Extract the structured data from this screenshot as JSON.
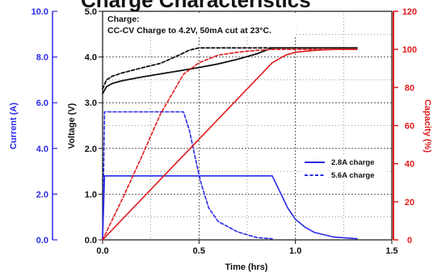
{
  "header": {
    "title": "Charge Characteristics"
  },
  "chart_data": {
    "type": "line",
    "annotation": {
      "line1": "Charge:",
      "line2": "CC-CV Charge to 4.2V, 50mA cut at 23°C."
    },
    "xlabel": "Time (hrs)",
    "x_ticks": [
      "0.0",
      "0.5",
      "1.0",
      "1.5"
    ],
    "xlim": [
      0,
      1.5
    ],
    "axes": {
      "current": {
        "label": "Current (A)",
        "ticks": [
          "0.0",
          "2.0",
          "4.0",
          "6.0",
          "8.0",
          "10.0"
        ],
        "range": [
          0,
          10
        ],
        "color": "#2a2ae6"
      },
      "voltage": {
        "label": "Voltage (V)",
        "ticks": [
          "0.0",
          "1.0",
          "2.0",
          "3.0",
          "4.0",
          "5.0"
        ],
        "range": [
          0,
          5
        ],
        "color": "#111111"
      },
      "capacity": {
        "label": "Capacity (%)",
        "ticks": [
          "0",
          "20",
          "40",
          "60",
          "80",
          "100",
          "120"
        ],
        "range": [
          0,
          120
        ],
        "color": "#e11b1b"
      }
    },
    "grid": true,
    "legend": {
      "placement": "right",
      "entries": [
        "2.8A charge",
        "5.6A charge"
      ]
    },
    "series": [
      {
        "name": "2.8A charge",
        "quantity": "current",
        "style": "solid",
        "color": "#2a2ae6",
        "x": [
          0,
          0.01,
          0.88,
          0.92,
          0.96,
          1.0,
          1.05,
          1.1,
          1.2,
          1.32
        ],
        "y": [
          0,
          2.8,
          2.8,
          2.1,
          1.4,
          0.9,
          0.55,
          0.32,
          0.12,
          0.05
        ]
      },
      {
        "name": "5.6A charge",
        "quantity": "current",
        "style": "dashed",
        "color": "#2a2ae6",
        "x": [
          0,
          0.01,
          0.42,
          0.45,
          0.48,
          0.51,
          0.55,
          0.6,
          0.7,
          0.8,
          0.88
        ],
        "y": [
          0,
          5.6,
          5.6,
          4.8,
          3.6,
          2.5,
          1.4,
          0.8,
          0.35,
          0.1,
          0.05
        ]
      },
      {
        "name": "2.8A charge",
        "quantity": "voltage",
        "style": "solid",
        "color": "#111111",
        "x": [
          0,
          0.02,
          0.05,
          0.1,
          0.2,
          0.3,
          0.4,
          0.5,
          0.6,
          0.7,
          0.8,
          0.88,
          1.0,
          1.32
        ],
        "y": [
          3.2,
          3.35,
          3.42,
          3.48,
          3.56,
          3.63,
          3.7,
          3.77,
          3.85,
          3.95,
          4.07,
          4.2,
          4.2,
          4.2
        ]
      },
      {
        "name": "5.6A charge",
        "quantity": "voltage",
        "style": "dashed",
        "color": "#111111",
        "x": [
          0,
          0.02,
          0.05,
          0.1,
          0.2,
          0.3,
          0.4,
          0.45,
          0.5,
          0.6,
          0.88
        ],
        "y": [
          3.3,
          3.5,
          3.58,
          3.65,
          3.76,
          3.86,
          4.05,
          4.15,
          4.2,
          4.2,
          4.2
        ]
      },
      {
        "name": "2.8A charge",
        "quantity": "capacity",
        "style": "solid",
        "color": "#e11b1b",
        "x": [
          0,
          0.88,
          0.95,
          1.0,
          1.1,
          1.2,
          1.32
        ],
        "y": [
          0,
          93,
          97,
          98.5,
          99.5,
          100,
          100
        ]
      },
      {
        "name": "5.6A charge",
        "quantity": "capacity",
        "style": "dashed",
        "color": "#e11b1b",
        "x": [
          0,
          0.1,
          0.2,
          0.3,
          0.42,
          0.5,
          0.6,
          0.7,
          0.8,
          0.88,
          1.32
        ],
        "y": [
          0,
          21,
          43,
          66,
          87,
          93,
          97,
          98.5,
          99.5,
          100,
          100
        ]
      }
    ]
  }
}
